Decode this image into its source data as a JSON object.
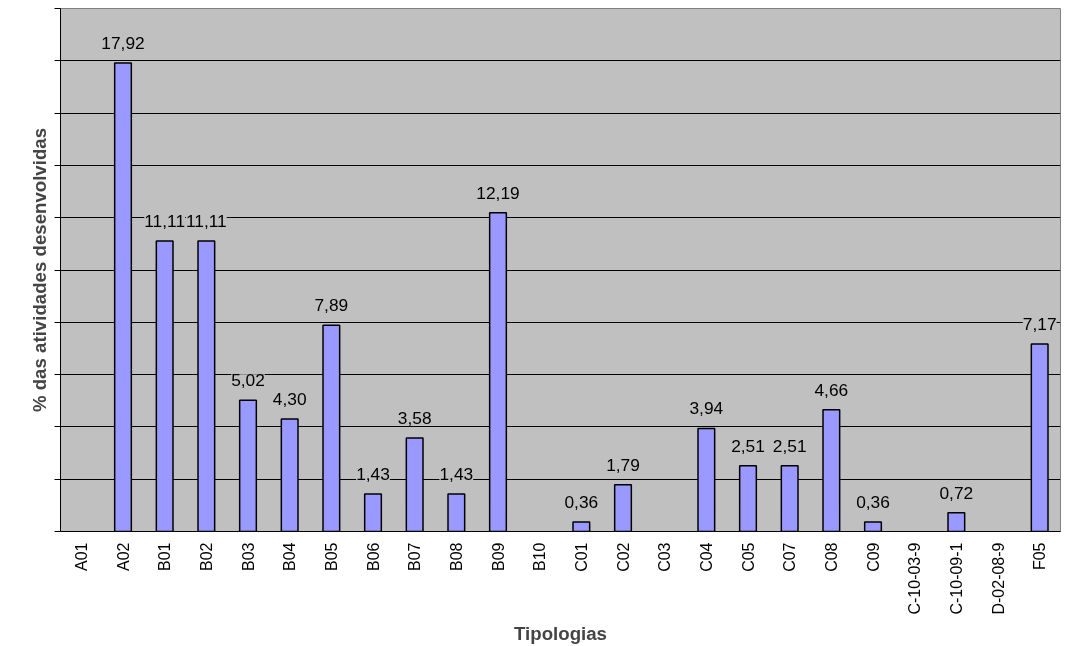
{
  "chart_data": {
    "type": "bar",
    "xlabel": "Tipologias",
    "ylabel": "% das atividades desenvolvidas",
    "categories": [
      "A01",
      "A02",
      "B01",
      "B02",
      "B03",
      "B04",
      "B05",
      "B06",
      "B07",
      "B08",
      "B09",
      "B10",
      "C01",
      "C02",
      "C03",
      "C04",
      "C05",
      "C07",
      "C08",
      "C09",
      "C-10-03-9",
      "C-10-09-1",
      "D-02-08-9",
      "F05"
    ],
    "values": [
      null,
      17.92,
      11.11,
      11.11,
      5.02,
      4.3,
      7.89,
      1.43,
      3.58,
      1.43,
      12.19,
      null,
      0.36,
      1.79,
      null,
      3.94,
      2.51,
      2.51,
      4.66,
      0.36,
      null,
      0.72,
      null,
      7.17
    ],
    "value_labels": [
      null,
      "17,92",
      "11,11",
      "11,11",
      "5,02",
      "4,30",
      "7,89",
      "1,43",
      "3,58",
      "1,43",
      "12,19",
      null,
      "0,36",
      "1,79",
      null,
      "3,94",
      "2,51",
      "2,51",
      "4,66",
      "0,36",
      null,
      "0,72",
      null,
      "7,17"
    ],
    "color": "#9999ff",
    "ylim": [
      0,
      20
    ],
    "yticks": [
      {
        "value": 0,
        "label": null
      },
      {
        "value": 2,
        "label": null
      },
      {
        "value": 4,
        "label": null
      },
      {
        "value": 6,
        "label": null
      },
      {
        "value": 8,
        "label": null
      },
      {
        "value": 10,
        "label": null
      },
      {
        "value": 12,
        "label": null
      },
      {
        "value": 14,
        "label": null
      },
      {
        "value": 16,
        "label": null
      },
      {
        "value": 18,
        "label": null
      },
      {
        "value": 20,
        "label": null
      }
    ],
    "tick_labels": "x",
    "grid": "y"
  }
}
